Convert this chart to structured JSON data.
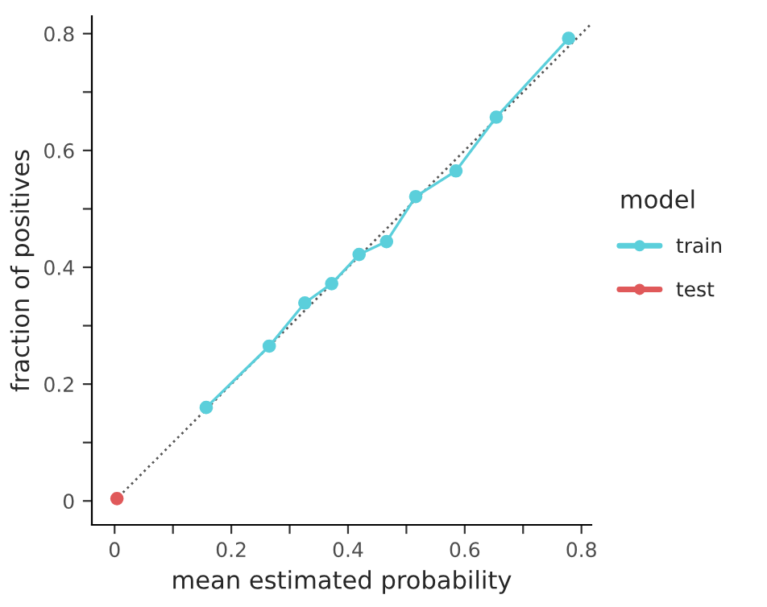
{
  "chart_data": {
    "type": "line",
    "xlabel": "mean estimated probability",
    "ylabel": "fraction of positives",
    "legend_title": "model",
    "legend": "right",
    "grid": false,
    "xlim": [
      -0.039,
      0.817
    ],
    "ylim": [
      -0.041,
      0.83
    ],
    "xticks": [
      0,
      {
        "value": 0.1,
        "label": null
      },
      0.2,
      {
        "value": 0.3,
        "label": null
      },
      0.4,
      {
        "value": 0.5,
        "label": null
      },
      0.6,
      {
        "value": 0.7,
        "label": null
      },
      0.8
    ],
    "yticks": [
      0,
      {
        "value": 0.1,
        "label": null
      },
      0.2,
      {
        "value": 0.3,
        "label": null
      },
      0.4,
      {
        "value": 0.5,
        "label": null
      },
      0.6,
      {
        "value": 0.7,
        "label": null
      },
      0.8
    ],
    "series": [
      {
        "type": "line",
        "color": "#555555",
        "line_style": "dotted",
        "x": [
          0,
          0.817
        ],
        "values": [
          0,
          0.817
        ]
      },
      {
        "name": "train",
        "color": "#5bcfdb",
        "marker": "circle",
        "x": [
          0.157,
          0.265,
          0.326,
          0.372,
          0.419,
          0.466,
          0.516,
          0.585,
          0.654,
          0.778
        ],
        "values": [
          0.16,
          0.265,
          0.339,
          0.372,
          0.422,
          0.444,
          0.521,
          0.565,
          0.657,
          0.792
        ]
      },
      {
        "name": "test",
        "color": "#e0595a",
        "marker": "circle",
        "x": [
          0.004
        ],
        "values": [
          0.004
        ]
      }
    ]
  }
}
